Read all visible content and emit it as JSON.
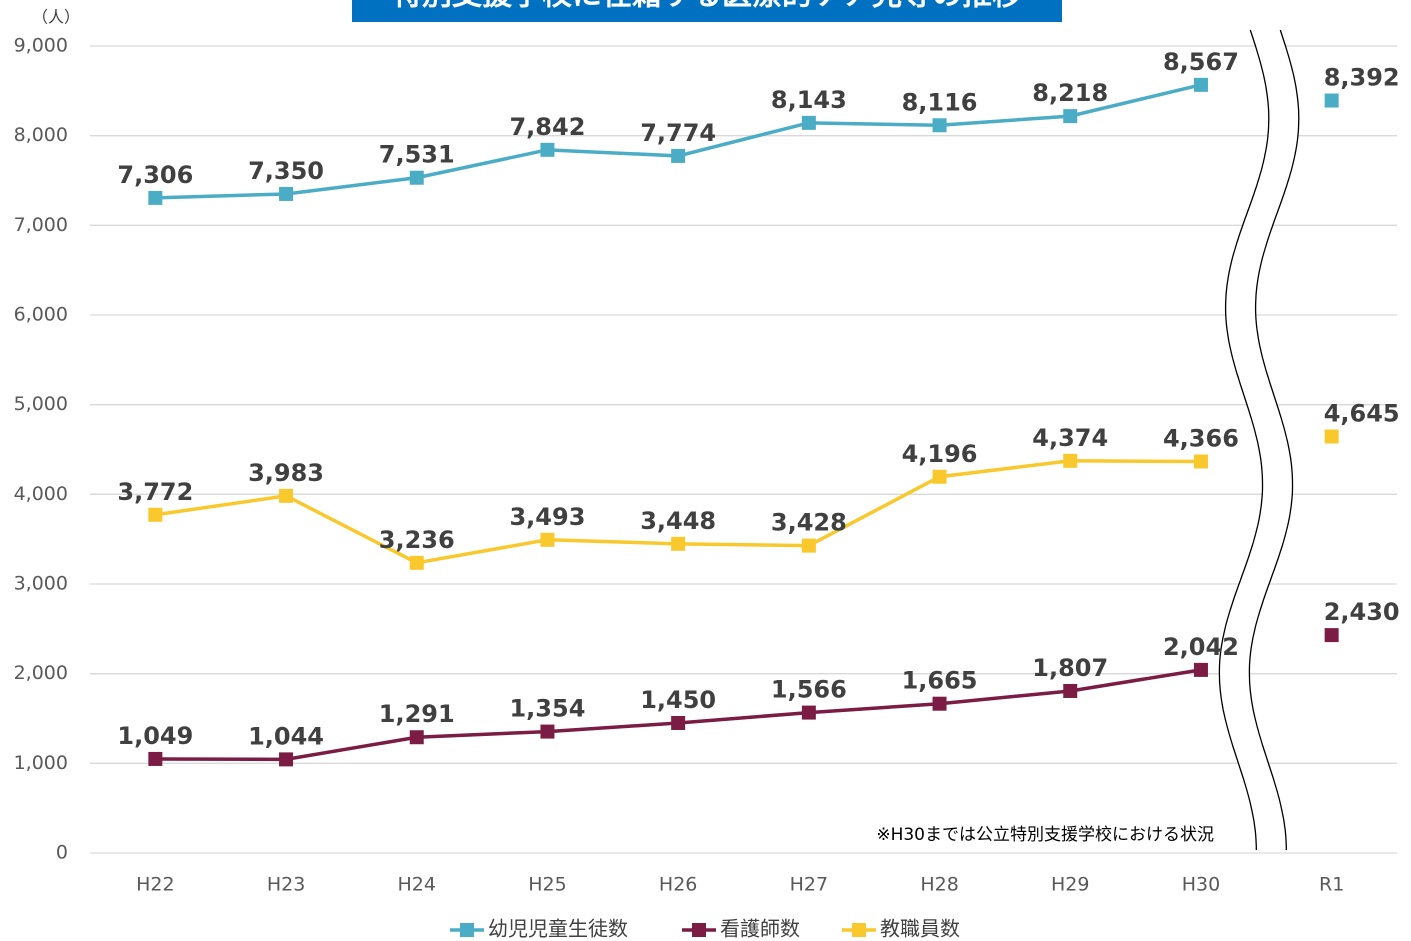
{
  "chart_data": {
    "type": "line",
    "title": "特別支援学校に在籍する医療的ケア児等の推移",
    "y_unit": "（人）",
    "annotation": "※H30までは公立特別支援学校における状況",
    "categories": [
      "H22",
      "H23",
      "H24",
      "H25",
      "H26",
      "H27",
      "H28",
      "H29",
      "H30",
      "R1"
    ],
    "x_break": 9,
    "series": [
      {
        "name": "幼児児童生徒数",
        "color": "#4bacc6",
        "values": [
          7306,
          7350,
          7531,
          7842,
          7774,
          8143,
          8116,
          8218,
          8567,
          8392
        ],
        "value_labels": [
          "7,306",
          "7,350",
          "7,531",
          "7,842",
          "7,774",
          "8,143",
          "8,116",
          "8,218",
          "8,567",
          "8,392"
        ]
      },
      {
        "name": "看護師数",
        "color": "#7b1c45",
        "values": [
          1049,
          1044,
          1291,
          1354,
          1450,
          1566,
          1665,
          1807,
          2042,
          2430
        ],
        "value_labels": [
          "1,049",
          "1,044",
          "1,291",
          "1,354",
          "1,450",
          "1,566",
          "1,665",
          "1,807",
          "2,042",
          "2,430"
        ]
      },
      {
        "name": "教職員数",
        "color": "#f9c82c",
        "values": [
          3772,
          3983,
          3236,
          3493,
          3448,
          3428,
          4196,
          4374,
          4366,
          4645
        ],
        "value_labels": [
          "3,772",
          "3,983",
          "3,236",
          "3,493",
          "3,448",
          "3,428",
          "4,196",
          "4,374",
          "4,366",
          "4,645"
        ]
      }
    ],
    "ylim": [
      0,
      9000
    ],
    "yticks": [
      0,
      {
        "value": 1000,
        "label": "1,000"
      },
      {
        "value": 2000,
        "label": "2,000"
      },
      {
        "value": 3000,
        "label": "3,000"
      },
      {
        "value": 4000,
        "label": "4,000"
      },
      {
        "value": 5000,
        "label": "5,000"
      },
      {
        "value": 6000,
        "label": "6,000"
      },
      {
        "value": 7000,
        "label": "7,000"
      },
      {
        "value": 8000,
        "label": "8,000"
      },
      {
        "value": 9000,
        "label": "9,000"
      }
    ],
    "grid": true,
    "legend": "bottom"
  }
}
